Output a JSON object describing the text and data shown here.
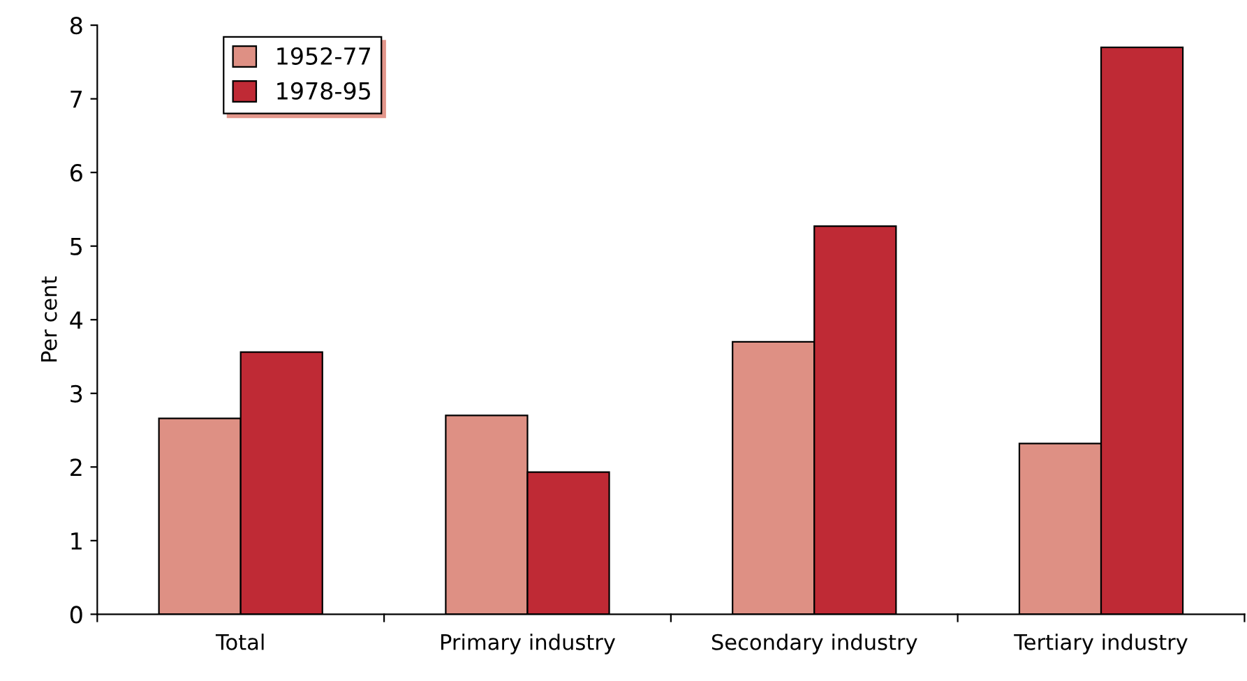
{
  "chart_data": {
    "type": "bar",
    "ylabel": "Per cent",
    "categories": [
      "Total",
      "Primary industry",
      "Secondary industry",
      "Tertiary industry"
    ],
    "series": [
      {
        "name": "1952-77",
        "color": "#de9084",
        "values": [
          2.66,
          2.7,
          3.7,
          2.32
        ]
      },
      {
        "name": "1978-95",
        "color": "#bf2a35",
        "values": [
          3.56,
          1.93,
          5.27,
          7.7
        ]
      }
    ],
    "ylim": [
      0,
      8
    ],
    "yticks": [
      0,
      1,
      2,
      3,
      4,
      5,
      6,
      7,
      8
    ],
    "grid": false,
    "legend": "top left"
  }
}
